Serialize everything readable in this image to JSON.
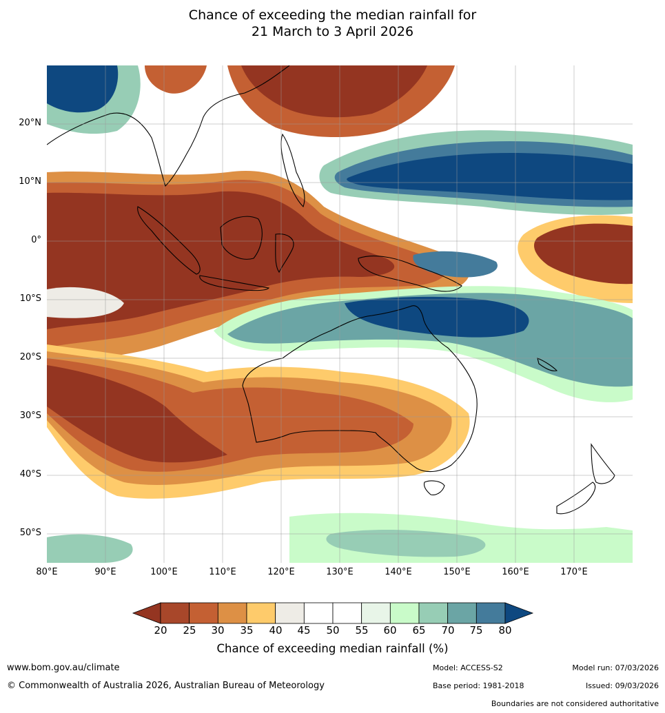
{
  "title": {
    "line1": "Chance of exceeding the median rainfall for",
    "line2": "21 March to 3 April 2026"
  },
  "map": {
    "lon_range": [
      80,
      180
    ],
    "lat_range": [
      -55,
      30
    ],
    "lat_labels": [
      "20°N",
      "10°N",
      "0°",
      "10°S",
      "20°S",
      "30°S",
      "40°S",
      "50°S"
    ],
    "lat_values": [
      20,
      10,
      0,
      -10,
      -20,
      -30,
      -40,
      -50
    ],
    "lon_labels": [
      "80°E",
      "90°E",
      "100°E",
      "110°E",
      "120°E",
      "130°E",
      "140°E",
      "150°E",
      "160°E",
      "170°E"
    ],
    "lon_values": [
      80,
      90,
      100,
      110,
      120,
      130,
      140,
      150,
      160,
      170
    ]
  },
  "colorbar": {
    "title": "Chance of exceeding median rainfall (%)",
    "labels": [
      "20",
      "25",
      "30",
      "35",
      "40",
      "45",
      "50",
      "55",
      "60",
      "65",
      "70",
      "75",
      "80"
    ],
    "below_color": "#943521",
    "above_color": "#0e4880",
    "colors": [
      "#a8472a",
      "#c46033",
      "#dd9045",
      "#fecb6b",
      "#eeece6",
      "#ffffff",
      "#ffffff",
      "#e8f5e8",
      "#c9fbc9",
      "#97cdb5",
      "#6ba5a5",
      "#447b9b"
    ]
  },
  "footer": {
    "url": "www.bom.gov.au/climate",
    "copyright": "© Commonwealth of Australia 2026, Australian Bureau of Meteorology",
    "model": "Model: ACCESS-S2",
    "base_period": "Base period: 1981-2018",
    "model_run": "Model run: 07/03/2026",
    "issued": "Issued: 09/03/2026",
    "disclaimer": "Boundaries are not considered authoritative"
  }
}
